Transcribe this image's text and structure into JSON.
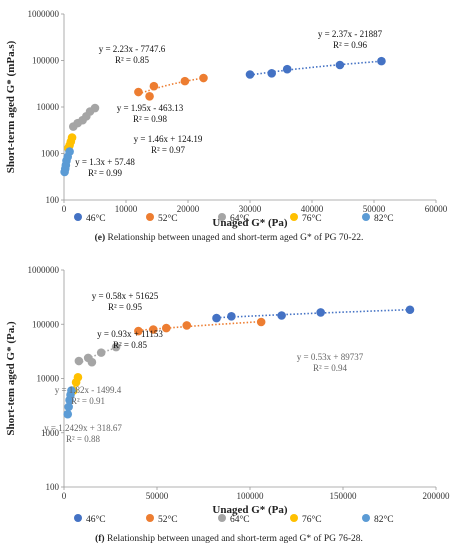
{
  "series_colors": {
    "46°C": "#4472C4",
    "52°C": "#ED7D31",
    "64°C": "#A5A5A5",
    "76°C": "#FFC000",
    "82°C": "#5B9BD5"
  },
  "chart_data": [
    {
      "type": "scatter",
      "caption_label": "(e)",
      "caption_text": "Relationship between unaged and short-term aged G* of PG 70-22.",
      "xlabel": "Unaged G* (Pa)",
      "ylabel": "Short-term aged G* (mPa.s)",
      "xlim": [
        0,
        60000
      ],
      "ylim": [
        100,
        1000000
      ],
      "y_scale": "log",
      "xticks": [
        0,
        10000,
        20000,
        30000,
        40000,
        50000,
        60000
      ],
      "yticks": [
        100,
        1000,
        10000,
        100000,
        1000000
      ],
      "legend": "bottom",
      "series": [
        {
          "name": "46°C",
          "x": [
            30000,
            33500,
            36000,
            44500,
            51200
          ],
          "y": [
            50000,
            53000,
            65000,
            80000,
            97000
          ]
        },
        {
          "name": "52°C",
          "x": [
            12000,
            13800,
            14500,
            19500,
            22500
          ],
          "y": [
            21000,
            17000,
            28000,
            36000,
            42000
          ]
        },
        {
          "name": "64°C",
          "x": [
            1500,
            2200,
            3000,
            3600,
            4200,
            5000
          ],
          "y": [
            3800,
            4500,
            5200,
            6300,
            8000,
            9500
          ]
        },
        {
          "name": "76°C",
          "x": [
            700,
            900,
            1100,
            1300
          ],
          "y": [
            1300,
            1500,
            1800,
            2200
          ]
        },
        {
          "name": "82°C",
          "x": [
            100,
            200,
            300,
            400,
            600,
            900
          ],
          "y": [
            400,
            470,
            560,
            700,
            850,
            1100
          ]
        }
      ],
      "annotations": [
        {
          "lines": [
            "y = 2.37x - 21887",
            "R² = 0.96"
          ]
        },
        {
          "lines": [
            "y = 2.23x - 7747.6",
            "R² = 0.85"
          ]
        },
        {
          "lines": [
            "y = 1.95x - 463.13",
            "R² = 0.98"
          ]
        },
        {
          "lines": [
            "y = 1.46x + 124.19",
            "R² = 0.97"
          ]
        },
        {
          "lines": [
            "y = 1.3x + 57.48",
            "R² = 0.99"
          ]
        }
      ]
    },
    {
      "type": "scatter",
      "caption_label": "(f)",
      "caption_text": "Relationship between unaged and short-term aged G* of PG 76-28.",
      "xlabel": "Unaged G* (Pa)",
      "ylabel": "Short-tem aged G* (Pa.)",
      "xlim": [
        0,
        200000
      ],
      "ylim": [
        100,
        1000000
      ],
      "y_scale": "log",
      "xticks": [
        0,
        50000,
        100000,
        150000,
        200000
      ],
      "yticks": [
        100,
        1000,
        10000,
        100000,
        1000000
      ],
      "legend": "bottom",
      "series": [
        {
          "name": "46°C",
          "x": [
            82000,
            90000,
            117000,
            138000,
            186000
          ],
          "y": [
            130000,
            140000,
            145000,
            165000,
            185000
          ]
        },
        {
          "name": "52°C",
          "x": [
            40000,
            48000,
            55000,
            66000,
            106000
          ],
          "y": [
            75000,
            80000,
            85000,
            95000,
            110000
          ]
        },
        {
          "name": "64°C",
          "x": [
            8000,
            13000,
            15000,
            20000,
            28000
          ],
          "y": [
            21000,
            24000,
            20000,
            30000,
            38000
          ]
        },
        {
          "name": "76°C",
          "x": [
            5000,
            6500,
            7500
          ],
          "y": [
            6000,
            8500,
            10500
          ]
        },
        {
          "name": "82°C",
          "x": [
            2000,
            2500,
            3000,
            3500,
            4000
          ],
          "y": [
            2200,
            3000,
            4000,
            5000,
            6000
          ]
        }
      ],
      "annotations": [
        {
          "lines": [
            "y = 0.58x + 51625",
            "R² = 0.95"
          ]
        },
        {
          "lines": [
            "y = 0.93x + 11153",
            "R² = 0.85"
          ]
        },
        {
          "lines": [
            "y = 0.53x + 89737",
            "R² = 0.94"
          ]
        },
        {
          "lines": [
            "y = 1.82x - 1499.4",
            "R² = 0.91"
          ]
        },
        {
          "lines": [
            "y = 1.2429x + 318.67",
            "R² = 0.88"
          ]
        }
      ]
    }
  ]
}
